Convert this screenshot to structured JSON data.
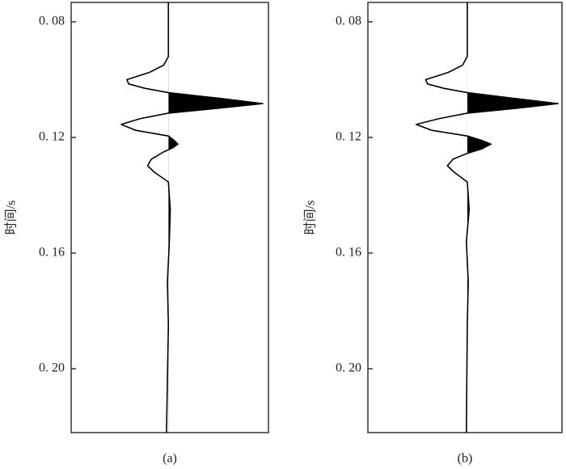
{
  "chart_data": [
    {
      "type": "wiggle",
      "caption": "(a)",
      "ylabel": "时间/s",
      "color": "#000000",
      "fill_positive": true,
      "invert_y": true,
      "ylim": [
        0.0733,
        0.2221
      ],
      "xlim": [
        -1.03,
        1.06
      ],
      "yticks": [
        {
          "value": 0.08,
          "label": "0. 08"
        },
        {
          "value": 0.12,
          "label": "0. 12"
        },
        {
          "value": 0.16,
          "label": "0. 16"
        },
        {
          "value": 0.2,
          "label": "0. 20"
        }
      ],
      "time": [
        0.0733,
        0.092,
        0.095,
        0.0975,
        0.1,
        0.1015,
        0.103,
        0.1045,
        0.1065,
        0.1083,
        0.11,
        0.1116,
        0.1135,
        0.1155,
        0.1175,
        0.1195,
        0.121,
        0.1223,
        0.1235,
        0.125,
        0.1275,
        0.1298,
        0.132,
        0.1354,
        0.145,
        0.156,
        0.17,
        0.185,
        0.2221
      ],
      "amplitude": [
        0,
        0,
        -0.05,
        -0.2,
        -0.44,
        -0.42,
        -0.25,
        0,
        0.55,
        1.0,
        0.5,
        0,
        -0.3,
        -0.5,
        -0.35,
        0,
        0.06,
        0.1,
        0.05,
        -0.05,
        -0.18,
        -0.22,
        -0.15,
        0,
        0.02,
        0.01,
        -0.01,
        0,
        -0.02
      ]
    },
    {
      "type": "wiggle",
      "caption": "(b)",
      "ylabel": "时间/s",
      "color": "#000000",
      "fill_positive": true,
      "invert_y": true,
      "ylim": [
        0.0733,
        0.2221
      ],
      "xlim": [
        -1.05,
        1.0
      ],
      "yticks": [
        {
          "value": 0.08,
          "label": "0. 08"
        },
        {
          "value": 0.12,
          "label": "0. 12"
        },
        {
          "value": 0.16,
          "label": "0. 16"
        },
        {
          "value": 0.2,
          "label": "0. 20"
        }
      ],
      "time": [
        0.0733,
        0.092,
        0.095,
        0.0975,
        0.1,
        0.1015,
        0.103,
        0.1045,
        0.1065,
        0.1083,
        0.11,
        0.1116,
        0.1135,
        0.1155,
        0.1175,
        0.1195,
        0.121,
        0.1223,
        0.124,
        0.1255,
        0.1275,
        0.1298,
        0.132,
        0.1354,
        0.145,
        0.156,
        0.17,
        0.185,
        0.2221
      ],
      "amplitude": [
        0,
        0,
        -0.05,
        -0.2,
        -0.44,
        -0.42,
        -0.25,
        0,
        0.5,
        0.96,
        0.5,
        0,
        -0.3,
        -0.54,
        -0.38,
        0,
        0.15,
        0.25,
        0.15,
        0,
        -0.15,
        -0.21,
        -0.14,
        0,
        0.02,
        -0.01,
        0.01,
        0,
        -0.01
      ]
    }
  ]
}
